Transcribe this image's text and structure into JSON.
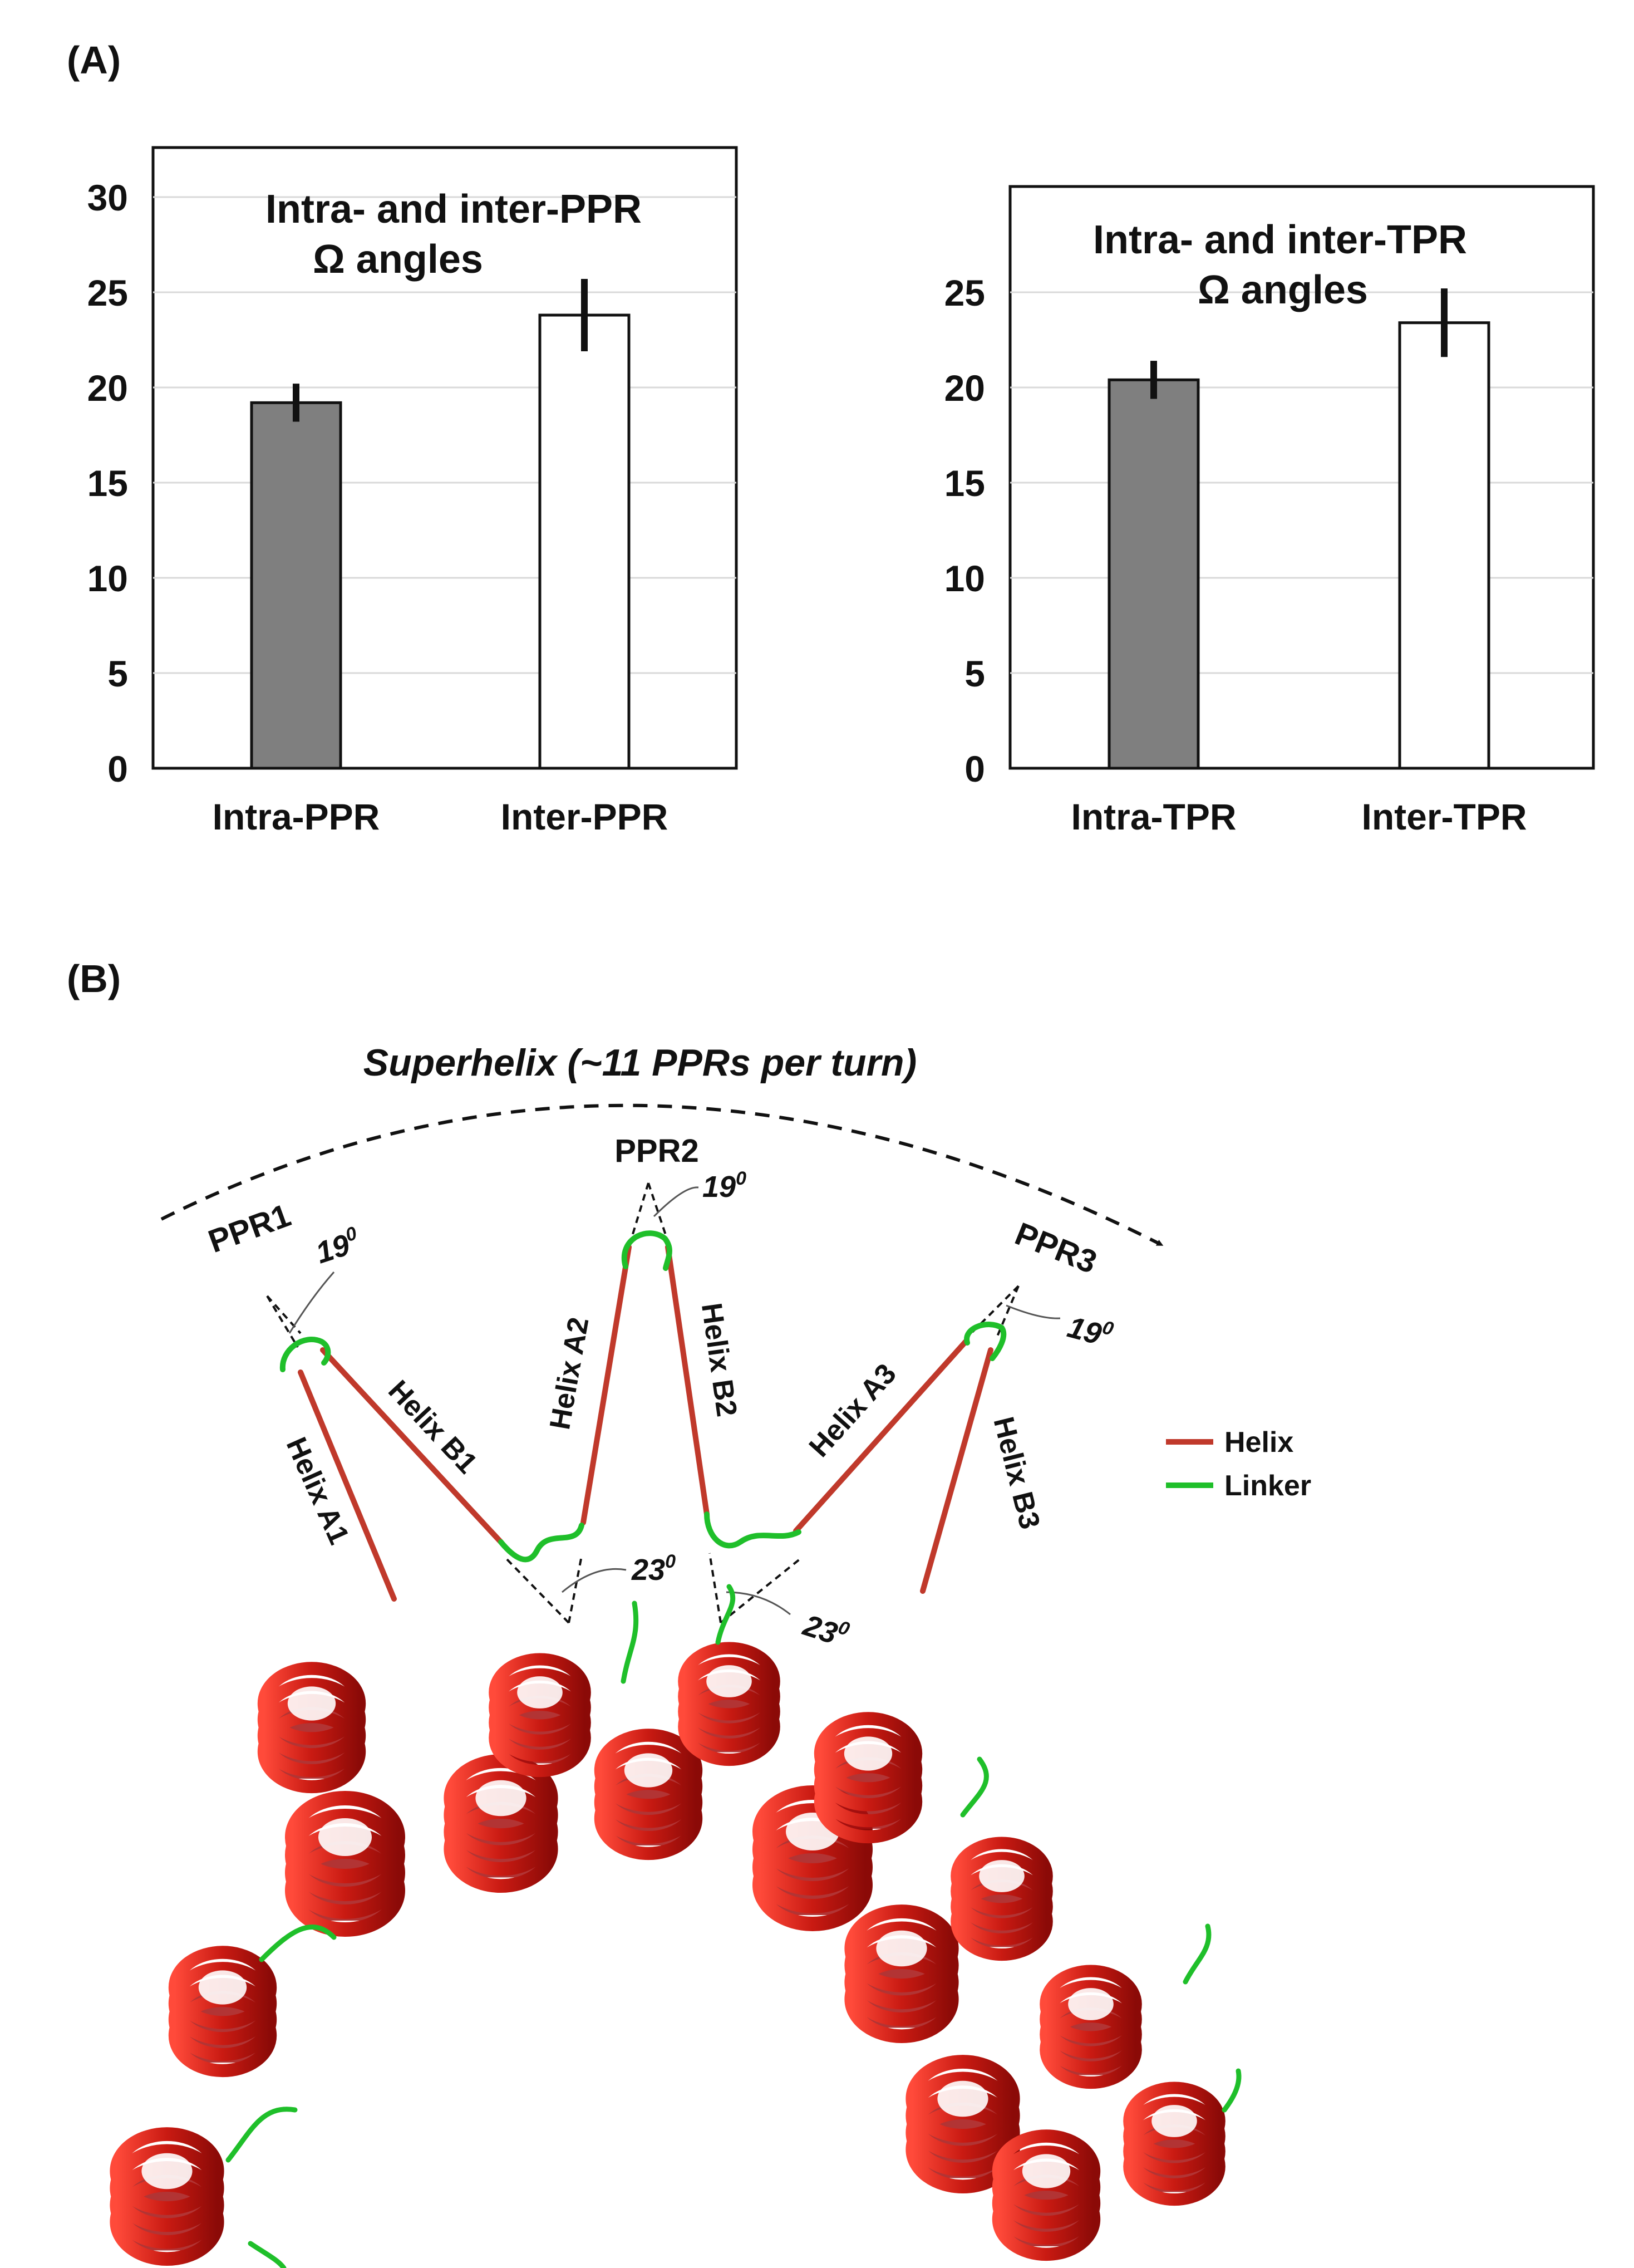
{
  "panels": {
    "a_label": "(A)",
    "b_label": "(B)"
  },
  "colors": {
    "intra_bar": "#7f7f7f",
    "inter_bar": "#ffffff",
    "helix": "#c0392b",
    "linker": "#1fbf2a",
    "grid": "#d9d9d9"
  },
  "chart_data": [
    {
      "type": "bar",
      "title_line1": "Intra- and inter-PPR",
      "title_line2": "Ω angles",
      "categories": [
        "Intra-PPR",
        "Inter-PPR"
      ],
      "values": [
        19.2,
        23.8
      ],
      "errors": [
        1.0,
        1.9
      ],
      "ylim": [
        0,
        30
      ],
      "yticks": [
        0,
        5,
        10,
        15,
        20,
        25,
        30
      ],
      "grid": true
    },
    {
      "type": "bar",
      "title_line1": "Intra- and  inter-TPR",
      "title_line2": "Ω angles",
      "categories": [
        "Intra-TPR",
        "Inter-TPR"
      ],
      "values": [
        20.4,
        23.4
      ],
      "errors": [
        1.0,
        1.8
      ],
      "ylim": [
        0,
        30
      ],
      "yticks": [
        0,
        5,
        10,
        15,
        20,
        25
      ],
      "grid": true
    }
  ],
  "diagram": {
    "superhelix": "Superhelix (~11 PPRs per turn)",
    "ppr_labels": [
      "PPR1",
      "PPR2",
      "PPR3"
    ],
    "helix_labels": [
      "Helix A1",
      "Helix B1",
      "Helix A2",
      "Helix B2",
      "Helix A3",
      "Helix B3"
    ],
    "angles": {
      "intra": "19",
      "inter": "23",
      "degree_mark": "0"
    },
    "legend": {
      "helix": "Helix",
      "linker": "Linker"
    }
  }
}
